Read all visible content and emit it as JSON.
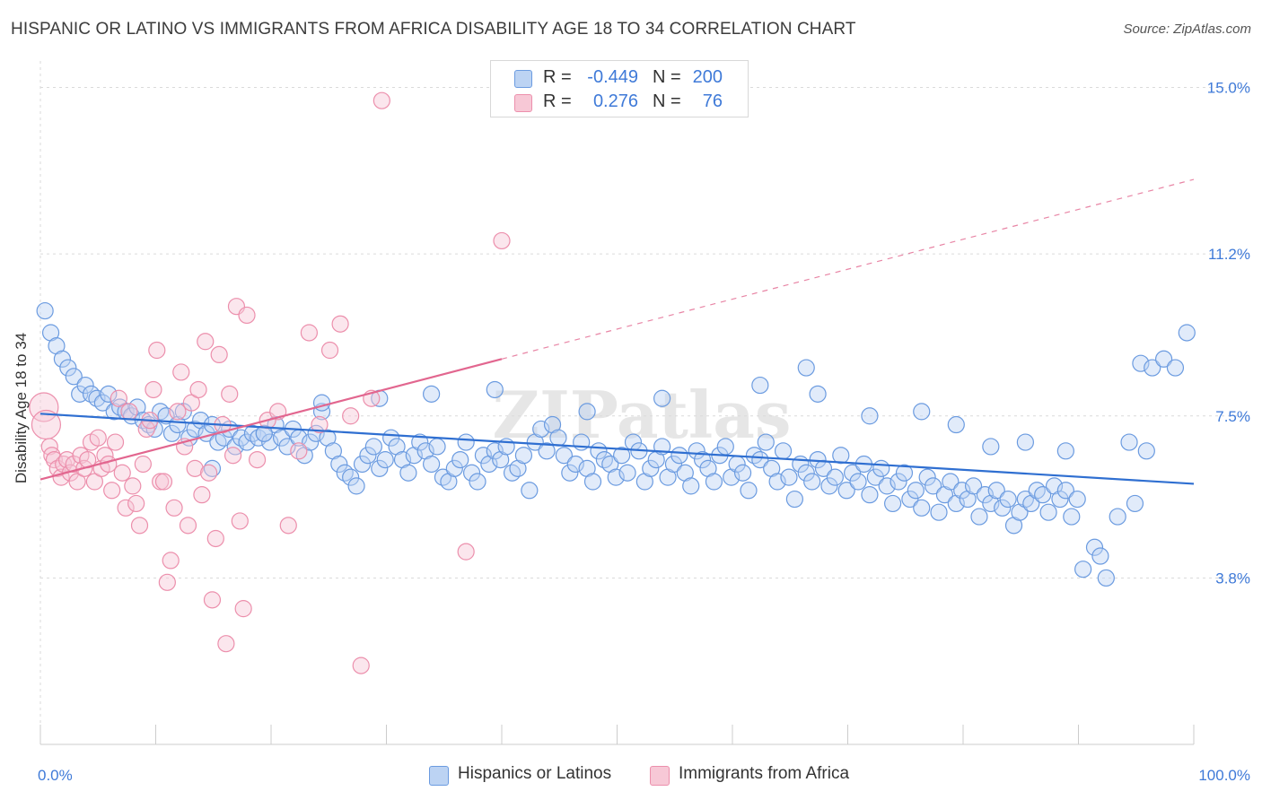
{
  "header": {
    "title": "HISPANIC OR LATINO VS IMMIGRANTS FROM AFRICA DISABILITY AGE 18 TO 34 CORRELATION CHART",
    "source": "Source: ZipAtlas.com"
  },
  "watermark": "ZIPatlas",
  "stats": [
    {
      "r_label": "R =",
      "r_value": "-0.449",
      "n_label": "N =",
      "n_value": "200",
      "color": "#a9c6f0"
    },
    {
      "r_label": "R =",
      "r_value": "0.276",
      "n_label": "N =",
      "n_value": "76",
      "color": "#f4b5c8"
    }
  ],
  "legend": [
    {
      "label": "Hispanics or Latinos",
      "color": "#a9c6f0"
    },
    {
      "label": "Immigrants from Africa",
      "color": "#f4b5c8"
    }
  ],
  "colors": {
    "blue_fill": "#bcd3f3",
    "blue_stroke": "#6b9be0",
    "blue_line": "#2f6fd1",
    "pink_fill": "#f7c8d6",
    "pink_stroke": "#ec8fac",
    "pink_line": "#e2668f",
    "tick_label": "#3f7ad8",
    "grid": "#dadada"
  },
  "chart_data": {
    "type": "scatter",
    "title": "HISPANIC OR LATINO VS IMMIGRANTS FROM AFRICA DISABILITY AGE 18 TO 34 CORRELATION CHART",
    "xlabel": "",
    "ylabel": "Disability Age 18 to 34",
    "xlim": [
      0,
      100
    ],
    "ylim": [
      0,
      15.4
    ],
    "x_tick_labels": [
      {
        "value": 0,
        "label": "0.0%"
      },
      {
        "value": 100,
        "label": "100.0%"
      }
    ],
    "y_ticks": [
      {
        "value": 3.8,
        "label": "3.8%"
      },
      {
        "value": 7.5,
        "label": "7.5%"
      },
      {
        "value": 11.2,
        "label": "11.2%"
      },
      {
        "value": 15.0,
        "label": "15.0%"
      }
    ],
    "grid": true,
    "legend_position": "bottom",
    "series": [
      {
        "name": "Hispanics or Latinos",
        "color": "#6b9be0",
        "trend": {
          "x": [
            0,
            100
          ],
          "y": [
            7.55,
            5.95
          ],
          "style": "solid"
        },
        "points": [
          [
            0.4,
            9.9
          ],
          [
            0.9,
            9.4
          ],
          [
            1.4,
            9.1
          ],
          [
            1.9,
            8.8
          ],
          [
            2.4,
            8.6
          ],
          [
            2.9,
            8.4
          ],
          [
            3.4,
            8.0
          ],
          [
            3.9,
            8.2
          ],
          [
            4.4,
            8.0
          ],
          [
            4.9,
            7.9
          ],
          [
            5.4,
            7.8
          ],
          [
            5.9,
            8.0
          ],
          [
            6.4,
            7.6
          ],
          [
            6.9,
            7.7
          ],
          [
            7.4,
            7.6
          ],
          [
            7.9,
            7.5
          ],
          [
            8.4,
            7.7
          ],
          [
            8.9,
            7.4
          ],
          [
            9.4,
            7.3
          ],
          [
            9.9,
            7.2
          ],
          [
            10.4,
            7.6
          ],
          [
            10.9,
            7.5
          ],
          [
            11.4,
            7.1
          ],
          [
            11.9,
            7.3
          ],
          [
            12.4,
            7.6
          ],
          [
            12.9,
            7.0
          ],
          [
            13.4,
            7.2
          ],
          [
            13.9,
            7.4
          ],
          [
            14.4,
            7.1
          ],
          [
            14.9,
            7.3
          ],
          [
            15.4,
            6.9
          ],
          [
            15.9,
            7.0
          ],
          [
            16.4,
            7.2
          ],
          [
            16.9,
            6.8
          ],
          [
            17.4,
            7.0
          ],
          [
            17.9,
            6.9
          ],
          [
            18.4,
            7.1
          ],
          [
            18.9,
            7.0
          ],
          [
            19.4,
            7.1
          ],
          [
            19.9,
            6.9
          ],
          [
            20.4,
            7.3
          ],
          [
            20.9,
            7.0
          ],
          [
            21.4,
            6.8
          ],
          [
            21.9,
            7.2
          ],
          [
            22.4,
            7.0
          ],
          [
            22.9,
            6.6
          ],
          [
            23.4,
            6.9
          ],
          [
            23.9,
            7.1
          ],
          [
            24.4,
            7.6
          ],
          [
            24.9,
            7.0
          ],
          [
            25.4,
            6.7
          ],
          [
            25.9,
            6.4
          ],
          [
            26.4,
            6.2
          ],
          [
            26.9,
            6.1
          ],
          [
            27.4,
            5.9
          ],
          [
            27.9,
            6.4
          ],
          [
            28.4,
            6.6
          ],
          [
            28.9,
            6.8
          ],
          [
            29.4,
            6.3
          ],
          [
            29.9,
            6.5
          ],
          [
            30.4,
            7.0
          ],
          [
            30.9,
            6.8
          ],
          [
            31.4,
            6.5
          ],
          [
            31.9,
            6.2
          ],
          [
            32.4,
            6.6
          ],
          [
            32.9,
            6.9
          ],
          [
            33.4,
            6.7
          ],
          [
            33.9,
            6.4
          ],
          [
            34.4,
            6.8
          ],
          [
            34.9,
            6.1
          ],
          [
            35.4,
            6.0
          ],
          [
            35.9,
            6.3
          ],
          [
            36.4,
            6.5
          ],
          [
            36.9,
            6.9
          ],
          [
            37.4,
            6.2
          ],
          [
            37.9,
            6.0
          ],
          [
            38.4,
            6.6
          ],
          [
            38.9,
            6.4
          ],
          [
            39.4,
            6.7
          ],
          [
            39.9,
            6.5
          ],
          [
            40.4,
            6.8
          ],
          [
            40.9,
            6.2
          ],
          [
            41.4,
            6.3
          ],
          [
            41.9,
            6.6
          ],
          [
            42.4,
            5.8
          ],
          [
            42.9,
            6.9
          ],
          [
            43.4,
            7.2
          ],
          [
            43.9,
            6.7
          ],
          [
            44.4,
            7.3
          ],
          [
            44.9,
            7.0
          ],
          [
            45.4,
            6.6
          ],
          [
            45.9,
            6.2
          ],
          [
            46.4,
            6.4
          ],
          [
            46.9,
            6.9
          ],
          [
            47.4,
            6.3
          ],
          [
            47.9,
            6.0
          ],
          [
            48.4,
            6.7
          ],
          [
            48.9,
            6.5
          ],
          [
            49.4,
            6.4
          ],
          [
            49.9,
            6.1
          ],
          [
            50.4,
            6.6
          ],
          [
            50.9,
            6.2
          ],
          [
            51.4,
            6.9
          ],
          [
            51.9,
            6.7
          ],
          [
            52.4,
            6.0
          ],
          [
            52.9,
            6.3
          ],
          [
            53.4,
            6.5
          ],
          [
            53.9,
            6.8
          ],
          [
            54.4,
            6.1
          ],
          [
            54.9,
            6.4
          ],
          [
            55.4,
            6.6
          ],
          [
            55.9,
            6.2
          ],
          [
            56.4,
            5.9
          ],
          [
            56.9,
            6.7
          ],
          [
            57.4,
            6.5
          ],
          [
            57.9,
            6.3
          ],
          [
            58.4,
            6.0
          ],
          [
            58.9,
            6.6
          ],
          [
            59.4,
            6.8
          ],
          [
            59.9,
            6.1
          ],
          [
            60.4,
            6.4
          ],
          [
            60.9,
            6.2
          ],
          [
            61.4,
            5.8
          ],
          [
            61.9,
            6.6
          ],
          [
            62.4,
            6.5
          ],
          [
            62.9,
            6.9
          ],
          [
            63.4,
            6.3
          ],
          [
            63.9,
            6.0
          ],
          [
            64.4,
            6.7
          ],
          [
            64.9,
            6.1
          ],
          [
            65.4,
            5.6
          ],
          [
            65.9,
            6.4
          ],
          [
            66.4,
            6.2
          ],
          [
            66.9,
            6.0
          ],
          [
            67.4,
            6.5
          ],
          [
            67.9,
            6.3
          ],
          [
            68.4,
            5.9
          ],
          [
            68.9,
            6.1
          ],
          [
            69.4,
            6.6
          ],
          [
            69.9,
            5.8
          ],
          [
            70.4,
            6.2
          ],
          [
            70.9,
            6.0
          ],
          [
            71.4,
            6.4
          ],
          [
            71.9,
            5.7
          ],
          [
            72.4,
            6.1
          ],
          [
            72.9,
            6.3
          ],
          [
            73.4,
            5.9
          ],
          [
            73.9,
            5.5
          ],
          [
            74.4,
            6.0
          ],
          [
            74.9,
            6.2
          ],
          [
            75.4,
            5.6
          ],
          [
            75.9,
            5.8
          ],
          [
            76.4,
            5.4
          ],
          [
            76.9,
            6.1
          ],
          [
            77.4,
            5.9
          ],
          [
            77.9,
            5.3
          ],
          [
            78.4,
            5.7
          ],
          [
            78.9,
            6.0
          ],
          [
            79.4,
            5.5
          ],
          [
            79.9,
            5.8
          ],
          [
            80.4,
            5.6
          ],
          [
            80.9,
            5.9
          ],
          [
            81.4,
            5.2
          ],
          [
            81.9,
            5.7
          ],
          [
            82.4,
            5.5
          ],
          [
            82.9,
            5.8
          ],
          [
            83.4,
            5.4
          ],
          [
            83.9,
            5.6
          ],
          [
            84.4,
            5.0
          ],
          [
            84.9,
            5.3
          ],
          [
            85.4,
            5.6
          ],
          [
            85.9,
            5.5
          ],
          [
            86.4,
            5.8
          ],
          [
            86.9,
            5.7
          ],
          [
            87.4,
            5.3
          ],
          [
            87.9,
            5.9
          ],
          [
            88.4,
            5.6
          ],
          [
            88.9,
            5.8
          ],
          [
            89.4,
            5.2
          ],
          [
            89.9,
            5.6
          ],
          [
            14.9,
            6.3
          ],
          [
            19.4,
            7.1
          ],
          [
            24.4,
            7.8
          ],
          [
            29.4,
            7.9
          ],
          [
            33.9,
            8.0
          ],
          [
            39.4,
            8.1
          ],
          [
            47.4,
            7.6
          ],
          [
            53.9,
            7.9
          ],
          [
            62.4,
            8.2
          ],
          [
            66.4,
            8.6
          ],
          [
            67.4,
            8.0
          ],
          [
            71.9,
            7.5
          ],
          [
            76.4,
            7.6
          ],
          [
            79.4,
            7.3
          ],
          [
            82.4,
            6.8
          ],
          [
            85.4,
            6.9
          ],
          [
            88.9,
            6.7
          ],
          [
            95.4,
            8.7
          ],
          [
            96.4,
            8.6
          ],
          [
            97.4,
            8.8
          ],
          [
            98.4,
            8.6
          ],
          [
            99.4,
            9.4
          ],
          [
            94.4,
            6.9
          ],
          [
            95.9,
            6.7
          ],
          [
            91.4,
            4.5
          ],
          [
            91.9,
            4.3
          ],
          [
            92.4,
            3.8
          ],
          [
            90.4,
            4.0
          ],
          [
            93.4,
            5.2
          ],
          [
            94.9,
            5.5
          ]
        ]
      },
      {
        "name": "Immigrants from Africa",
        "color": "#ec8fac",
        "trend": {
          "x": [
            0,
            40
          ],
          "y": [
            6.05,
            8.8
          ],
          "style": "solid",
          "extended_to": [
            100,
            12.9
          ],
          "extended_style": "dashed"
        },
        "points": [
          [
            0.3,
            7.7
          ],
          [
            0.5,
            7.3
          ],
          [
            0.8,
            6.8
          ],
          [
            1.0,
            6.6
          ],
          [
            1.2,
            6.5
          ],
          [
            1.5,
            6.3
          ],
          [
            1.8,
            6.1
          ],
          [
            2.0,
            6.4
          ],
          [
            2.3,
            6.5
          ],
          [
            2.6,
            6.2
          ],
          [
            2.9,
            6.4
          ],
          [
            3.2,
            6.0
          ],
          [
            3.5,
            6.6
          ],
          [
            3.8,
            6.3
          ],
          [
            4.1,
            6.5
          ],
          [
            4.4,
            6.9
          ],
          [
            4.7,
            6.0
          ],
          [
            5.0,
            7.0
          ],
          [
            5.3,
            6.3
          ],
          [
            5.6,
            6.6
          ],
          [
            5.9,
            6.4
          ],
          [
            6.2,
            5.8
          ],
          [
            6.5,
            6.9
          ],
          [
            6.8,
            7.9
          ],
          [
            7.1,
            6.2
          ],
          [
            7.4,
            5.4
          ],
          [
            7.7,
            7.6
          ],
          [
            8.0,
            5.9
          ],
          [
            8.3,
            5.5
          ],
          [
            8.6,
            5.0
          ],
          [
            8.9,
            6.4
          ],
          [
            9.2,
            7.2
          ],
          [
            9.5,
            7.4
          ],
          [
            9.8,
            8.1
          ],
          [
            10.1,
            9.0
          ],
          [
            10.4,
            6.0
          ],
          [
            10.7,
            6.0
          ],
          [
            11.0,
            3.7
          ],
          [
            11.3,
            4.2
          ],
          [
            11.6,
            5.4
          ],
          [
            11.9,
            7.6
          ],
          [
            12.2,
            8.5
          ],
          [
            12.5,
            6.8
          ],
          [
            12.8,
            5.0
          ],
          [
            13.1,
            7.8
          ],
          [
            13.4,
            6.3
          ],
          [
            13.7,
            8.1
          ],
          [
            14.0,
            5.7
          ],
          [
            14.3,
            9.2
          ],
          [
            14.6,
            6.2
          ],
          [
            14.9,
            3.3
          ],
          [
            15.2,
            4.7
          ],
          [
            15.5,
            8.9
          ],
          [
            15.8,
            7.3
          ],
          [
            16.1,
            2.3
          ],
          [
            16.4,
            8.0
          ],
          [
            16.7,
            6.6
          ],
          [
            17.0,
            10.0
          ],
          [
            17.3,
            5.1
          ],
          [
            17.6,
            3.1
          ],
          [
            17.9,
            9.8
          ],
          [
            18.8,
            6.5
          ],
          [
            19.7,
            7.4
          ],
          [
            20.6,
            7.6
          ],
          [
            21.5,
            5.0
          ],
          [
            22.4,
            6.7
          ],
          [
            23.3,
            9.4
          ],
          [
            24.2,
            7.3
          ],
          [
            25.1,
            9.0
          ],
          [
            26.0,
            9.6
          ],
          [
            26.9,
            7.5
          ],
          [
            27.8,
            1.8
          ],
          [
            28.7,
            7.9
          ],
          [
            29.6,
            14.7
          ],
          [
            36.9,
            4.4
          ],
          [
            40.0,
            11.5
          ]
        ]
      }
    ]
  }
}
